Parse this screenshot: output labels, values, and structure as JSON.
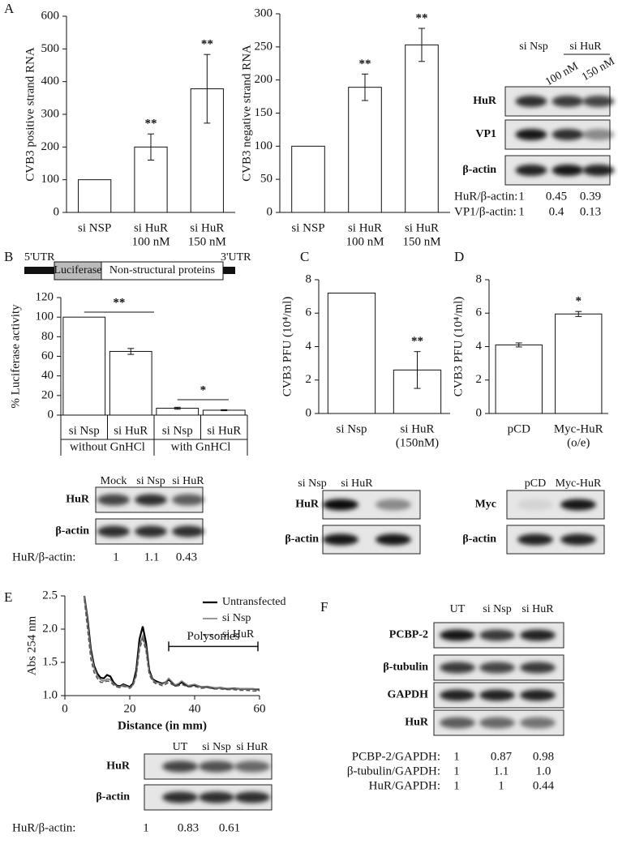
{
  "panel_labels": [
    "A",
    "B",
    "C",
    "D",
    "E",
    "F"
  ],
  "chart_data": [
    {
      "type": "bar",
      "ylabel": "CVB3 positive strand RNA",
      "categories": [
        [
          "si NSP"
        ],
        [
          "si HuR",
          "100 nM"
        ],
        [
          "si HuR",
          "150 nM"
        ]
      ],
      "values": [
        100,
        200,
        378
      ],
      "errors": [
        null,
        40,
        105
      ],
      "significance": [
        null,
        "**",
        "**"
      ],
      "ylim": [
        0,
        600
      ],
      "yticks": [
        0,
        100,
        200,
        300,
        400,
        500,
        600
      ],
      "color": "#ffffff"
    },
    {
      "type": "bar",
      "ylabel": "CVB3 negative strand RNA",
      "categories": [
        [
          "si NSP"
        ],
        [
          "si HuR",
          "100 nM"
        ],
        [
          "si HuR",
          "150 nM"
        ]
      ],
      "values": [
        100,
        189,
        253
      ],
      "errors": [
        null,
        20,
        25
      ],
      "significance": [
        null,
        "**",
        "**"
      ],
      "ylim": [
        0,
        300
      ],
      "yticks": [
        0,
        50,
        100,
        150,
        200,
        250,
        300
      ],
      "color": "#ffffff"
    },
    {
      "type": "bar",
      "ylabel": "% Luciferase activity",
      "categories": [
        [
          "si Nsp"
        ],
        [
          "si HuR"
        ],
        [
          "si Nsp"
        ],
        [
          "si HuR"
        ]
      ],
      "groups": [
        "without GnHCl",
        "with GnHCl"
      ],
      "values": [
        100,
        65,
        7,
        5
      ],
      "errors": [
        null,
        3,
        1,
        0.5
      ],
      "brackets": [
        "**",
        "*"
      ],
      "ylim": [
        0,
        120
      ],
      "yticks": [
        0,
        20,
        40,
        60,
        80,
        100,
        120
      ],
      "color": "#ffffff"
    },
    {
      "type": "bar",
      "ylabel": "CVB3 PFU (10⁴/ml)",
      "categories": [
        [
          "si Nsp"
        ],
        [
          "si HuR",
          "(150nM)"
        ]
      ],
      "values": [
        7.2,
        2.6
      ],
      "errors": [
        null,
        1.1
      ],
      "significance": [
        null,
        "**"
      ],
      "ylim": [
        0,
        8
      ],
      "yticks": [
        0,
        2,
        4,
        6,
        8
      ],
      "color": "#ffffff"
    },
    {
      "type": "bar",
      "ylabel": "CVB3 PFU (10⁴/ml)",
      "categories": [
        [
          "pCD"
        ],
        [
          "Myc-HuR",
          "(o/e)"
        ]
      ],
      "values": [
        4.1,
        5.95
      ],
      "errors": [
        0.12,
        0.15
      ],
      "significance": [
        null,
        "*"
      ],
      "ylim": [
        0,
        8
      ],
      "yticks": [
        0,
        2,
        4,
        6,
        8
      ],
      "color": "#ffffff"
    },
    {
      "type": "line",
      "xlabel": "Distance (in mm)",
      "ylabel": "Abs 254 nm",
      "annotation": "Polysomes",
      "x": [
        6,
        7,
        8,
        9,
        10,
        11,
        12,
        13,
        14,
        15,
        16,
        17,
        18,
        19,
        20,
        21,
        22,
        23,
        24,
        25,
        26,
        27,
        28,
        29,
        30,
        31,
        32,
        33,
        34,
        35,
        36,
        38,
        40,
        42,
        44,
        46,
        48,
        50,
        52,
        54,
        56,
        58,
        60
      ],
      "series": [
        {
          "name": "Untransfected",
          "color": "#000000",
          "dashed": false,
          "values": [
            2.5,
            2.15,
            1.7,
            1.45,
            1.33,
            1.27,
            1.26,
            1.31,
            1.29,
            1.2,
            1.15,
            1.14,
            1.17,
            1.15,
            1.13,
            1.18,
            1.38,
            1.85,
            2.04,
            1.8,
            1.38,
            1.25,
            1.22,
            1.2,
            1.18,
            1.2,
            1.24,
            1.2,
            1.15,
            1.17,
            1.2,
            1.14,
            1.16,
            1.13,
            1.13,
            1.11,
            1.12,
            1.1,
            1.11,
            1.1,
            1.1,
            1.1,
            1.09
          ]
        },
        {
          "name": "si Nsp",
          "color": "#777777",
          "dashed": false,
          "values": [
            2.5,
            2.1,
            1.65,
            1.42,
            1.3,
            1.24,
            1.22,
            1.25,
            1.24,
            1.18,
            1.14,
            1.13,
            1.16,
            1.14,
            1.12,
            1.16,
            1.32,
            1.75,
            1.9,
            1.72,
            1.35,
            1.24,
            1.2,
            1.19,
            1.17,
            1.2,
            1.26,
            1.21,
            1.16,
            1.18,
            1.22,
            1.15,
            1.17,
            1.13,
            1.14,
            1.12,
            1.12,
            1.11,
            1.11,
            1.1,
            1.1,
            1.1,
            1.1
          ]
        },
        {
          "name": "si HuR",
          "color": "#555555",
          "dashed": true,
          "values": [
            2.45,
            2.0,
            1.55,
            1.35,
            1.26,
            1.2,
            1.2,
            1.22,
            1.21,
            1.16,
            1.13,
            1.12,
            1.14,
            1.13,
            1.11,
            1.15,
            1.3,
            1.7,
            1.85,
            1.68,
            1.32,
            1.22,
            1.18,
            1.17,
            1.15,
            1.17,
            1.2,
            1.17,
            1.14,
            1.15,
            1.17,
            1.13,
            1.14,
            1.11,
            1.12,
            1.1,
            1.1,
            1.09,
            1.09,
            1.08,
            1.08,
            1.07,
            1.07
          ]
        }
      ],
      "xlim": [
        0,
        60
      ],
      "xticks": [
        0,
        20,
        40,
        60
      ],
      "ylim": [
        1,
        2.5
      ],
      "yticks": [
        {
          "value": 1,
          "label": "1.0"
        },
        1.5,
        {
          "value": 2,
          "label": "2.0"
        },
        2.5
      ]
    }
  ],
  "construct": {
    "labels": [
      "5'UTR",
      "Luciferase",
      "Non-structural proteins",
      "3'UTR"
    ]
  },
  "blots": [
    {
      "lanes": [
        "si Nsp",
        "si HuR"
      ],
      "sublanes": [
        "100 nM",
        "150 nM"
      ],
      "rows": [
        "HuR",
        "VP1",
        "β-actin"
      ],
      "ratios": [
        {
          "label": "HuR/β-actin:",
          "values": [
            "1",
            "0.45",
            "0.39"
          ]
        },
        {
          "label": "VP1/β-actin:",
          "values": [
            "1",
            "0.4",
            "0.13"
          ]
        }
      ]
    },
    {
      "lanes": [
        "Mock",
        "si Nsp",
        "si HuR"
      ],
      "rows": [
        "HuR",
        "β-actin"
      ],
      "ratios": [
        {
          "label": "HuR/β-actin:",
          "values": [
            "1",
            "1.1",
            "0.43"
          ]
        }
      ]
    },
    {
      "lanes": [
        "si Nsp",
        "si HuR"
      ],
      "rows": [
        "HuR",
        "β-actin"
      ]
    },
    {
      "lanes": [
        "pCD",
        "Myc-HuR"
      ],
      "rows": [
        "Myc",
        "β-actin"
      ]
    },
    {
      "lanes": [
        "UT",
        "si Nsp",
        "si HuR"
      ],
      "rows": [
        "HuR",
        "β-actin"
      ],
      "ratios": [
        {
          "label": "HuR/β-actin:",
          "values": [
            "1",
            "0.83",
            "0.61"
          ]
        }
      ]
    },
    {
      "lanes": [
        "UT",
        "si Nsp",
        "si HuR"
      ],
      "rows": [
        "PCBP-2",
        "β-tubulin",
        "GAPDH",
        "HuR"
      ],
      "ratios": [
        {
          "label": "PCBP-2/GAPDH:",
          "values": [
            "1",
            "0.87",
            "0.98"
          ]
        },
        {
          "label": "β-tubulin/GAPDH:",
          "values": [
            "1",
            "1.1",
            "1.0"
          ]
        },
        {
          "label": "HuR/GAPDH:",
          "values": [
            "1",
            "1",
            "0.44"
          ]
        }
      ]
    }
  ]
}
